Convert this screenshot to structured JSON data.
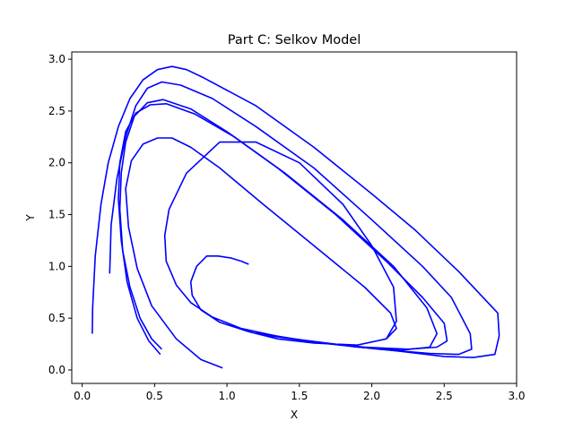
{
  "chart_data": {
    "type": "line",
    "title": "Part C: Selkov Model",
    "xlabel": "X",
    "ylabel": "Y",
    "xlim": [
      -0.072,
      3.0
    ],
    "ylim": [
      -0.13,
      3.07
    ],
    "xticks": [
      0.0,
      0.5,
      1.0,
      1.5,
      2.0,
      2.5,
      3.0
    ],
    "yticks": [
      0.0,
      0.5,
      1.0,
      1.5,
      2.0,
      2.5,
      3.0
    ],
    "xtick_labels": [
      "0.0",
      "0.5",
      "1.0",
      "1.5",
      "2.0",
      "2.5",
      "3.0"
    ],
    "ytick_labels": [
      "0.0",
      "0.5",
      "1.0",
      "1.5",
      "2.0",
      "2.5",
      "3.0"
    ],
    "grid": false,
    "line_color": "#0000ff",
    "series": [
      {
        "x": [
          0.07,
          0.072,
          0.09,
          0.13,
          0.18,
          0.25,
          0.33,
          0.42,
          0.52,
          0.62,
          0.72,
          0.84,
          1.2,
          1.6,
          2.0,
          2.3,
          2.6,
          2.87,
          2.88,
          2.85,
          2.7,
          2.5,
          2.2,
          1.8,
          1.4,
          1.1,
          0.9,
          0.75,
          0.65,
          0.58,
          0.57,
          0.6,
          0.72,
          0.95,
          1.2,
          1.5,
          1.8,
          2.0,
          2.15,
          2.17,
          2.1,
          1.9,
          1.6,
          1.35,
          1.15,
          0.95,
          0.82,
          0.76,
          0.75,
          0.79,
          0.86,
          0.94,
          1.03,
          1.1,
          1.15
        ],
        "y": [
          0.35,
          0.6,
          1.1,
          1.6,
          2.0,
          2.35,
          2.62,
          2.8,
          2.9,
          2.93,
          2.9,
          2.82,
          2.55,
          2.15,
          1.7,
          1.35,
          0.95,
          0.55,
          0.33,
          0.15,
          0.12,
          0.13,
          0.18,
          0.24,
          0.31,
          0.4,
          0.51,
          0.65,
          0.82,
          1.05,
          1.3,
          1.55,
          1.9,
          2.2,
          2.2,
          2.0,
          1.6,
          1.2,
          0.8,
          0.47,
          0.3,
          0.24,
          0.26,
          0.3,
          0.37,
          0.46,
          0.58,
          0.72,
          0.85,
          1.0,
          1.1,
          1.1,
          1.08,
          1.05,
          1.02
        ]
      },
      {
        "x": [
          0.19,
          0.2,
          0.24,
          0.3,
          0.37,
          0.45,
          0.55,
          0.68,
          0.9,
          1.2,
          1.6,
          2.0,
          2.35,
          2.55,
          2.68,
          2.69,
          2.6,
          2.4,
          2.05,
          1.65,
          1.3
        ],
        "y": [
          0.93,
          1.4,
          1.85,
          2.25,
          2.55,
          2.72,
          2.78,
          2.75,
          2.62,
          2.35,
          1.95,
          1.45,
          1.0,
          0.7,
          0.35,
          0.2,
          0.15,
          0.16,
          0.2,
          0.26,
          0.33
        ]
      },
      {
        "x": [
          0.55,
          0.48,
          0.4,
          0.33,
          0.28,
          0.26,
          0.27,
          0.3,
          0.36,
          0.45,
          0.56,
          0.75,
          1.0,
          1.35,
          1.75,
          2.1,
          2.35,
          2.5,
          2.52,
          2.45,
          2.25,
          1.95,
          1.6,
          1.25
        ],
        "y": [
          0.2,
          0.3,
          0.5,
          0.8,
          1.15,
          1.55,
          1.9,
          2.2,
          2.45,
          2.58,
          2.61,
          2.52,
          2.3,
          1.95,
          1.5,
          1.05,
          0.7,
          0.45,
          0.28,
          0.22,
          0.2,
          0.22,
          0.27,
          0.34
        ]
      },
      {
        "x": [
          0.54,
          0.46,
          0.38,
          0.31,
          0.27,
          0.25,
          0.26,
          0.3,
          0.37,
          0.47,
          0.58,
          0.78,
          1.05,
          1.4,
          1.8,
          2.15,
          2.38,
          2.45,
          2.4,
          2.2,
          1.9,
          1.55,
          1.2
        ],
        "y": [
          0.15,
          0.28,
          0.5,
          0.85,
          1.25,
          1.65,
          2.0,
          2.3,
          2.48,
          2.56,
          2.57,
          2.47,
          2.25,
          1.9,
          1.45,
          1.0,
          0.6,
          0.35,
          0.22,
          0.19,
          0.22,
          0.28,
          0.36
        ]
      },
      {
        "x": [
          0.97,
          0.82,
          0.65,
          0.48,
          0.38,
          0.32,
          0.3,
          0.34,
          0.42,
          0.52,
          0.62,
          0.75,
          0.95,
          1.25,
          1.6,
          1.95,
          2.13,
          2.17,
          2.1
        ],
        "y": [
          0.02,
          0.1,
          0.3,
          0.62,
          0.98,
          1.38,
          1.75,
          2.02,
          2.18,
          2.24,
          2.24,
          2.15,
          1.95,
          1.6,
          1.2,
          0.8,
          0.55,
          0.4,
          0.3
        ]
      }
    ]
  }
}
